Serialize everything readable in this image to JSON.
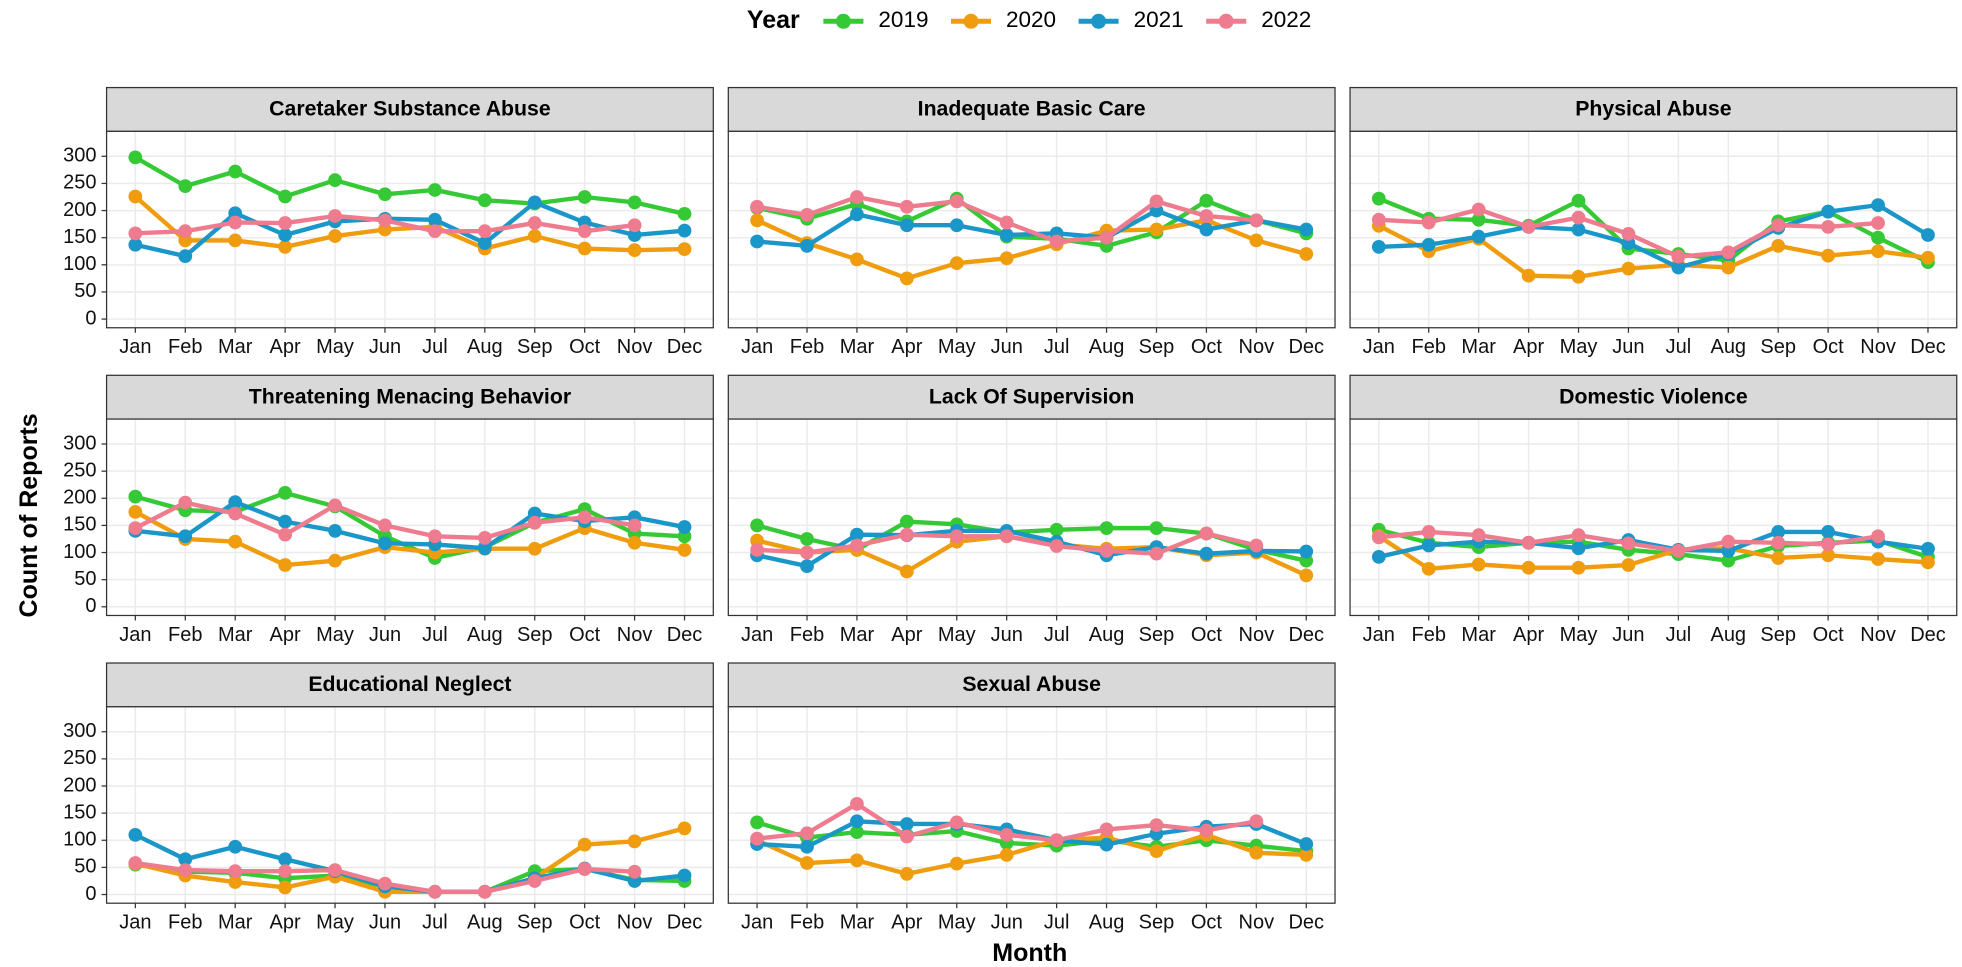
{
  "chart_data": {
    "type": "line",
    "legend_title": "Year",
    "x_label": "Month",
    "y_label": "Count of Reports",
    "categories": [
      "Jan",
      "Feb",
      "Mar",
      "Apr",
      "May",
      "Jun",
      "Jul",
      "Aug",
      "Sep",
      "Oct",
      "Nov",
      "Dec"
    ],
    "ylim": [
      -16,
      346
    ],
    "yticks": [
      0,
      50,
      100,
      150,
      200,
      250,
      300
    ],
    "grid": true,
    "series": [
      {
        "name": "2019",
        "color": "#35c935"
      },
      {
        "name": "2020",
        "color": "#f09c0f"
      },
      {
        "name": "2021",
        "color": "#1b96c8"
      },
      {
        "name": "2022",
        "color": "#ef7b8f"
      }
    ],
    "panels": [
      {
        "title": "Caretaker Substance Abuse",
        "values": [
          [
            298,
            245,
            272,
            226,
            256,
            230,
            238,
            219,
            213,
            225,
            215,
            194
          ],
          [
            226,
            145,
            145,
            133,
            153,
            165,
            170,
            130,
            153,
            130,
            127,
            129
          ],
          [
            137,
            116,
            195,
            155,
            180,
            185,
            183,
            140,
            215,
            178,
            155,
            163
          ],
          [
            158,
            162,
            178,
            177,
            190,
            182,
            162,
            162,
            177,
            162,
            173,
            null
          ]
        ]
      },
      {
        "title": "Inadequate Basic Care",
        "values": [
          [
            205,
            185,
            212,
            180,
            222,
            152,
            148,
            135,
            160,
            218,
            182,
            158
          ],
          [
            182,
            140,
            110,
            75,
            103,
            112,
            138,
            163,
            165,
            182,
            145,
            120
          ],
          [
            143,
            135,
            193,
            173,
            173,
            155,
            158,
            150,
            200,
            165,
            182,
            165
          ],
          [
            207,
            192,
            225,
            207,
            217,
            178,
            143,
            150,
            217,
            190,
            182,
            null
          ]
        ]
      },
      {
        "title": "Physical Abuse",
        "values": [
          [
            222,
            185,
            183,
            172,
            218,
            130,
            120,
            108,
            180,
            198,
            150,
            105
          ],
          [
            172,
            125,
            148,
            80,
            78,
            93,
            100,
            95,
            135,
            117,
            125,
            113
          ],
          [
            133,
            137,
            152,
            170,
            165,
            140,
            95,
            120,
            168,
            198,
            210,
            155
          ],
          [
            183,
            178,
            202,
            170,
            187,
            157,
            115,
            123,
            173,
            170,
            177,
            null
          ]
        ]
      },
      {
        "title": "Threatening Menacing Behavior",
        "values": [
          [
            203,
            178,
            175,
            210,
            185,
            130,
            90,
            110,
            155,
            180,
            135,
            130
          ],
          [
            175,
            125,
            120,
            77,
            85,
            110,
            100,
            107,
            107,
            145,
            118,
            105
          ],
          [
            140,
            130,
            193,
            157,
            140,
            117,
            115,
            108,
            172,
            158,
            165,
            147
          ],
          [
            145,
            192,
            172,
            133,
            187,
            150,
            130,
            127,
            155,
            165,
            150,
            null
          ]
        ]
      },
      {
        "title": "Lack Of Supervision",
        "values": [
          [
            150,
            125,
            105,
            157,
            152,
            137,
            142,
            145,
            145,
            135,
            105,
            85
          ],
          [
            122,
            100,
            105,
            65,
            120,
            130,
            115,
            107,
            110,
            95,
            100,
            58
          ],
          [
            95,
            75,
            133,
            132,
            140,
            140,
            120,
            95,
            110,
            98,
            103,
            102
          ],
          [
            105,
            100,
            113,
            133,
            130,
            130,
            112,
            103,
            98,
            135,
            113,
            null
          ]
        ]
      },
      {
        "title": "Domestic Violence",
        "values": [
          [
            142,
            118,
            110,
            118,
            120,
            105,
            97,
            85,
            112,
            118,
            122,
            92
          ],
          [
            130,
            70,
            78,
            72,
            72,
            77,
            105,
            108,
            90,
            95,
            88,
            82
          ],
          [
            92,
            113,
            120,
            118,
            108,
            123,
            105,
            103,
            138,
            138,
            120,
            107
          ],
          [
            128,
            138,
            132,
            118,
            132,
            117,
            103,
            120,
            118,
            115,
            130,
            null
          ]
        ]
      },
      {
        "title": "Educational Neglect",
        "values": [
          [
            55,
            42,
            40,
            30,
            35,
            15,
            5,
            5,
            43,
            47,
            27,
            25
          ],
          [
            57,
            35,
            23,
            13,
            33,
            5,
            5,
            5,
            30,
            92,
            98,
            122
          ],
          [
            110,
            65,
            88,
            65,
            43,
            15,
            5,
            5,
            30,
            48,
            25,
            35
          ],
          [
            58,
            45,
            43,
            43,
            45,
            20,
            5,
            5,
            25,
            47,
            42,
            null
          ]
        ]
      },
      {
        "title": "Sexual Abuse",
        "values": [
          [
            133,
            105,
            115,
            110,
            117,
            95,
            90,
            100,
            88,
            100,
            90,
            80
          ],
          [
            100,
            58,
            63,
            38,
            57,
            73,
            100,
            105,
            80,
            110,
            77,
            73
          ],
          [
            93,
            88,
            135,
            130,
            130,
            120,
            100,
            92,
            112,
            125,
            130,
            93
          ],
          [
            103,
            113,
            167,
            107,
            133,
            110,
            100,
            120,
            128,
            118,
            135,
            null
          ]
        ]
      }
    ]
  }
}
